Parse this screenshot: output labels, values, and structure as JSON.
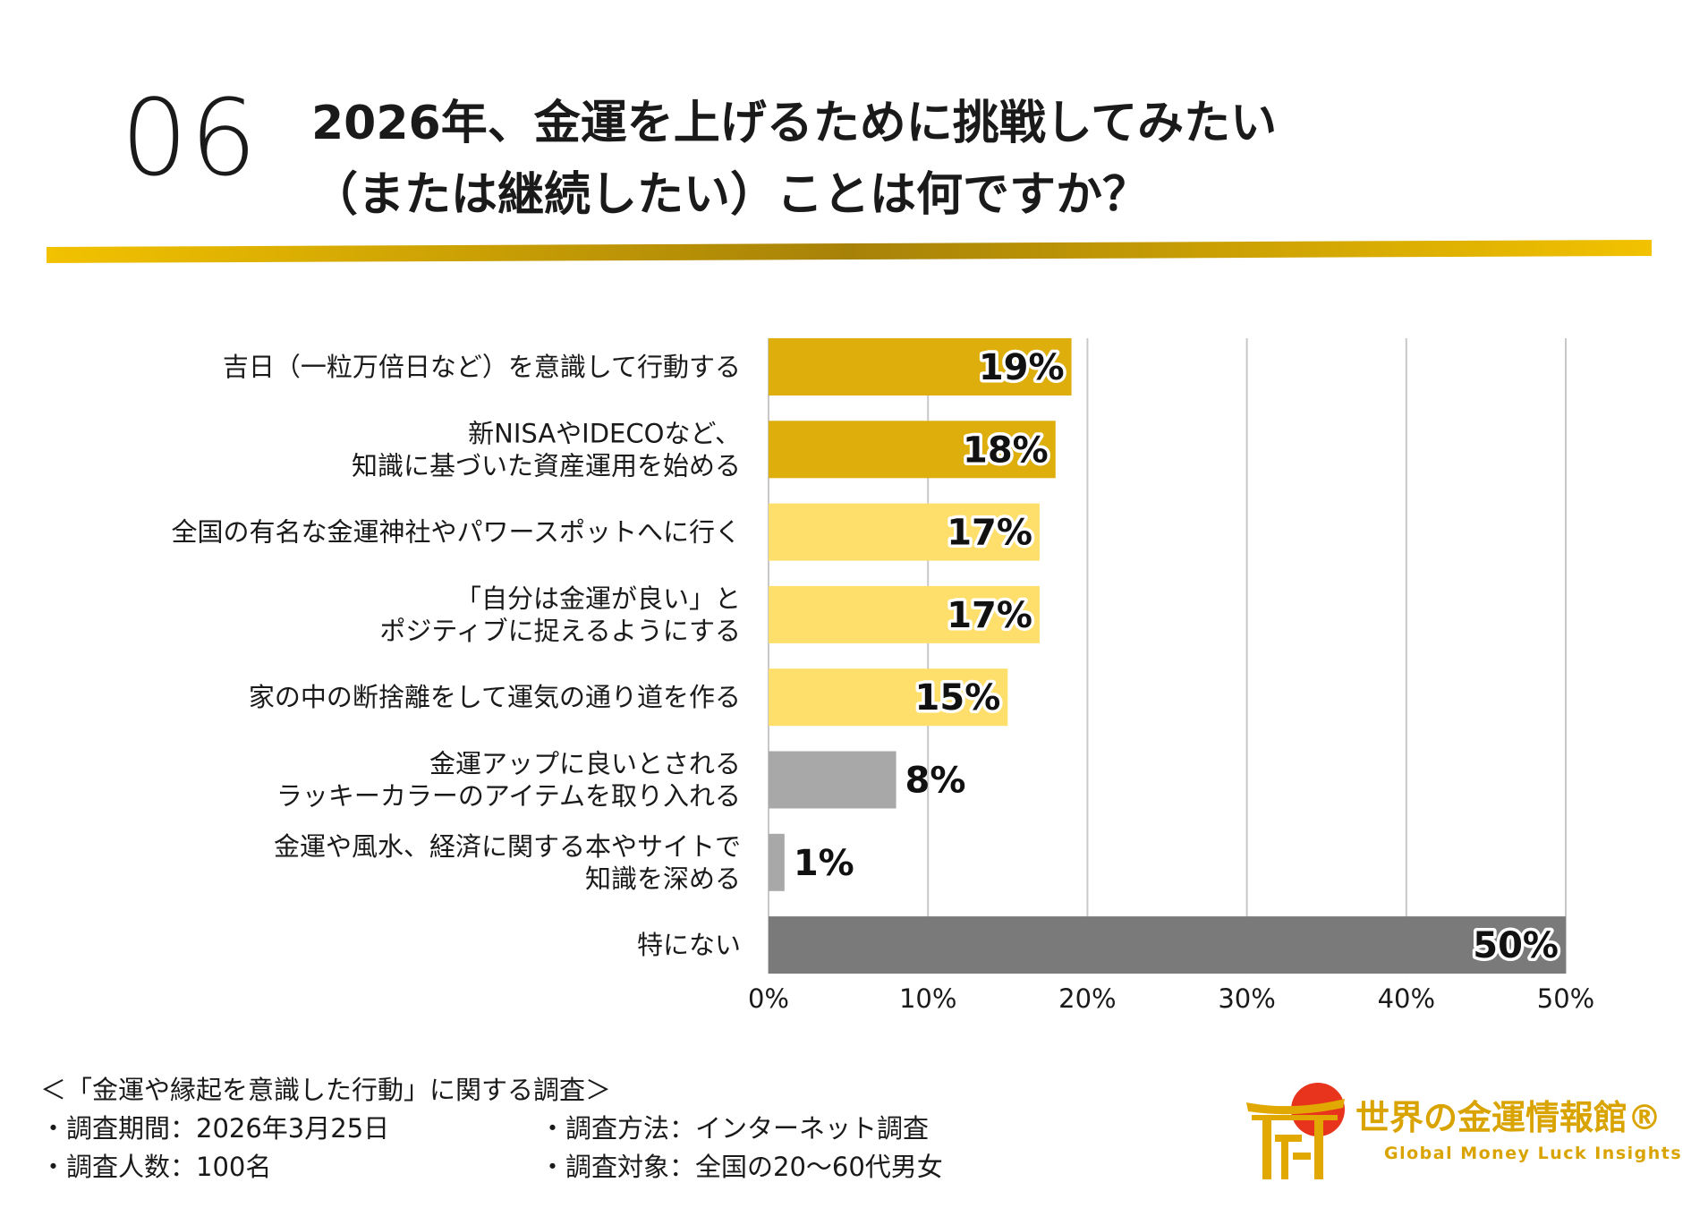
{
  "header": {
    "number": "06",
    "title_line1": "2026年、金運を上げるために挑戦してみたい",
    "title_line2": "（または継続したい）ことは何ですか？"
  },
  "chart_data": {
    "type": "bar",
    "orientation": "horizontal",
    "title": "2026年、金運を上げるために挑戦してみたい（または継続したい）ことは何ですか？",
    "categories": [
      "吉日（一粒万倍日など）を意識して行動する",
      "新NISAやIDECOなど、\n知識に基づいた資産運用を始める",
      "全国の有名な金運神社やパワースポットへに行く",
      "「自分は金運が良い」と\nポジティブに捉えるようにする",
      "家の中の断捨離をして運気の通り道を作る",
      "金運アップに良いとされる\nラッキーカラーのアイテムを取り入れる",
      "金運や風水、経済に関する本やサイトで\n知識を深める",
      "特にない"
    ],
    "values": [
      19,
      18,
      17,
      17,
      15,
      8,
      1,
      50
    ],
    "value_labels": [
      "19%",
      "18%",
      "17%",
      "17%",
      "15%",
      "8%",
      "1%",
      "50%"
    ],
    "bar_colors": [
      "#deae0d",
      "#deae0d",
      "#ffdf6b",
      "#ffdf6b",
      "#ffdf6b",
      "#a8a8a8",
      "#a8a8a8",
      "#7a7a7a"
    ],
    "xlim": [
      0,
      50
    ],
    "xticks": [
      "0%",
      "10%",
      "20%",
      "30%",
      "40%",
      "50%"
    ],
    "grid": true,
    "xlabel": "",
    "ylabel": ""
  },
  "footer": {
    "survey_title": "＜「金運や縁起を意識した行動」に関する調査＞",
    "period": "・調査期間：2026年3月25日",
    "method": "・調査方法：インターネット調査",
    "count": "・調査人数：100名",
    "target": "・調査対象：全国の20〜60代男女"
  },
  "brand": {
    "name": "世界の金運情報館®",
    "tagline": "Global Money Luck Insights"
  },
  "colors": {
    "gold_dark": "#b89000",
    "gold": "#deae0d",
    "gold_light": "#ffdf6b",
    "gray": "#a8a8a8",
    "gray_dark": "#7a7a7a",
    "brand_red": "#e8341c"
  }
}
